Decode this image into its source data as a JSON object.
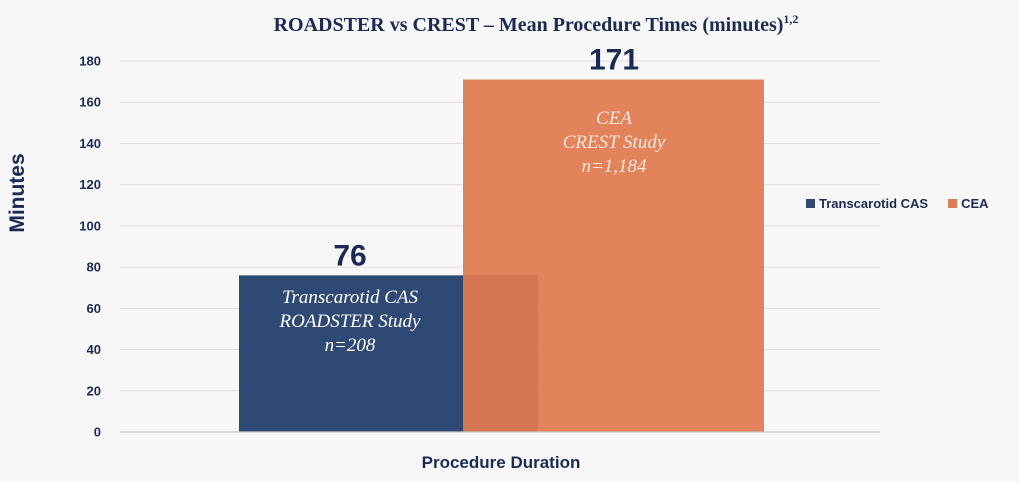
{
  "chart_data": {
    "type": "bar",
    "title": "ROADSTER vs CREST – Mean Procedure Times (minutes)",
    "title_superscript": "1,2",
    "xlabel": "Procedure Duration",
    "ylabel": "Minutes",
    "ylim": [
      0,
      180
    ],
    "yticks": [
      0,
      20,
      40,
      60,
      80,
      100,
      120,
      140,
      160,
      180
    ],
    "grid": true,
    "legend_position": "right",
    "overlapping_bars": true,
    "series": [
      {
        "name": "Transcarotid CAS",
        "value": 76,
        "value_label": "76",
        "color": "#2e4a74",
        "notes": [
          "Transcarotid CAS",
          "ROADSTER Study",
          "n=208"
        ]
      },
      {
        "name": "CEA",
        "value": 171,
        "value_label": "171",
        "color": "#e07a4f",
        "notes": [
          "CEA",
          "CREST Study",
          "n=1,184"
        ]
      }
    ]
  }
}
